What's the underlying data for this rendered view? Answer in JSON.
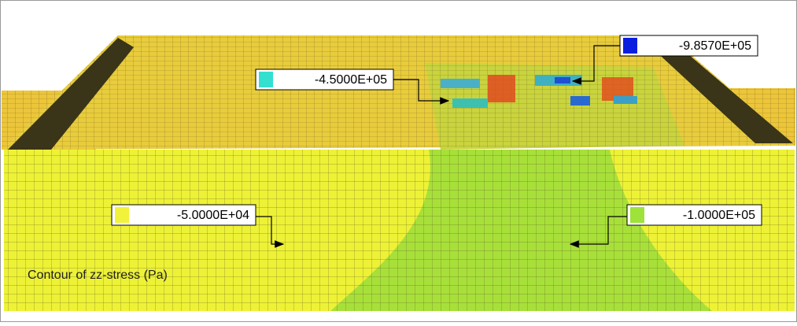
{
  "caption": "Contour of zz-stress (Pa)",
  "labels": [
    {
      "text": "-9.8570E+05",
      "color": "#0a1ee0"
    },
    {
      "text": "-4.5000E+05",
      "color": "#33e0d0"
    },
    {
      "text": "-5.0000E+04",
      "color": "#f2f23a"
    },
    {
      "text": "-1.0000E+05",
      "color": "#9ee23a"
    }
  ]
}
